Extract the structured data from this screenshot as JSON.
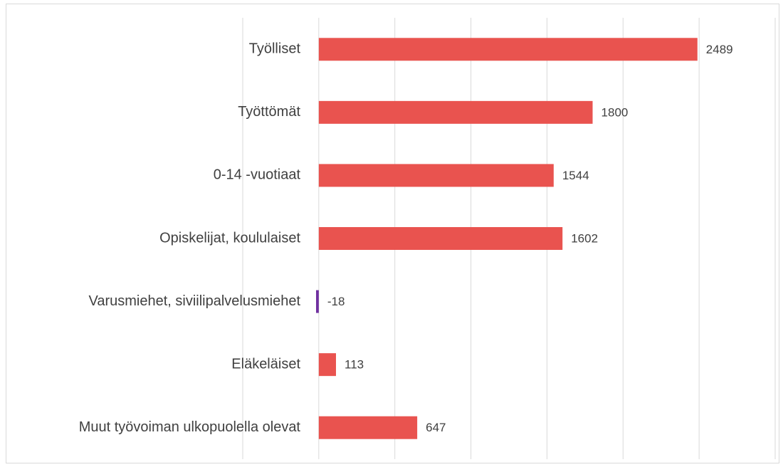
{
  "chart_data": {
    "type": "hbar",
    "categories": [
      "Työlliset",
      "Työttömät",
      "0-14 -vuotiaat",
      "Opiskelijat, koululaiset",
      "Varusmiehet, siviilipalvelusmiehet",
      "Eläkeläiset",
      "Muut työvoiman ulkopuolella olevat"
    ],
    "values": [
      2489,
      1800,
      1544,
      1602,
      -18,
      113,
      647
    ],
    "color": "#e9534f",
    "negative_color": "#7030a0",
    "xlim": [
      -500,
      3000
    ],
    "xticks": [
      -500,
      0,
      500,
      1000,
      1500,
      2000,
      2500,
      3000
    ],
    "grid": true
  }
}
